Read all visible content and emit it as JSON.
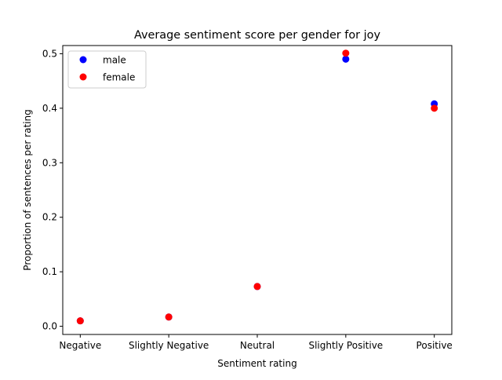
{
  "chart_data": {
    "type": "scatter",
    "title": "Average sentiment score per gender for joy",
    "xlabel": "Sentiment rating",
    "ylabel": "Proportion of sentences per rating",
    "categories": [
      "Negative",
      "Slightly Negative",
      "Neutral",
      "Slightly Positive",
      "Positive"
    ],
    "ylim": [
      -0.015,
      0.515
    ],
    "yticks": [
      "0.0",
      "0.1",
      "0.2",
      "0.3",
      "0.4",
      "0.5"
    ],
    "grid": false,
    "legend_position": "top-left",
    "series": [
      {
        "name": "male",
        "color": "#0000ff",
        "values": [
          0.01,
          0.017,
          0.073,
          0.49,
          0.408
        ]
      },
      {
        "name": "female",
        "color": "#ff0000",
        "values": [
          0.01,
          0.017,
          0.073,
          0.501,
          0.4
        ]
      }
    ]
  }
}
